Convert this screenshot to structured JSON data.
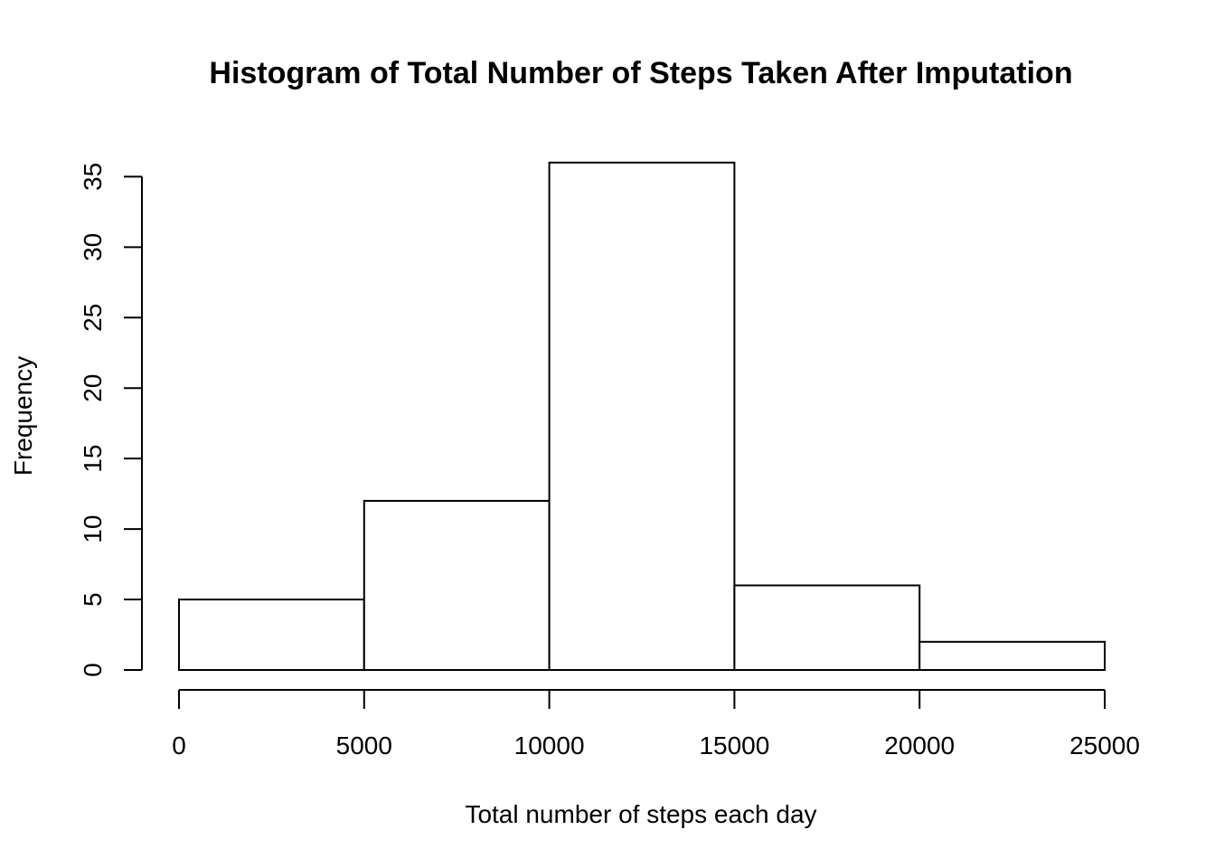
{
  "chart_data": {
    "type": "bar",
    "title": "Histogram of Total Number of Steps Taken After Imputation",
    "xlabel": "Total number of steps each day",
    "ylabel": "Frequency",
    "bins": [
      {
        "start": 0,
        "end": 5000,
        "count": 5
      },
      {
        "start": 5000,
        "end": 10000,
        "count": 12
      },
      {
        "start": 10000,
        "end": 15000,
        "count": 36
      },
      {
        "start": 15000,
        "end": 20000,
        "count": 6
      },
      {
        "start": 20000,
        "end": 25000,
        "count": 2
      }
    ],
    "x_ticks": [
      0,
      5000,
      10000,
      15000,
      20000,
      25000
    ],
    "y_ticks": [
      0,
      5,
      10,
      15,
      20,
      25,
      30,
      35
    ],
    "xlim": [
      0,
      25000
    ],
    "ylim": [
      0,
      35
    ],
    "grid": false,
    "legend": "none",
    "colors": {
      "bar_fill": "#ffffff",
      "bar_stroke": "#000000",
      "text": "#000000"
    }
  }
}
